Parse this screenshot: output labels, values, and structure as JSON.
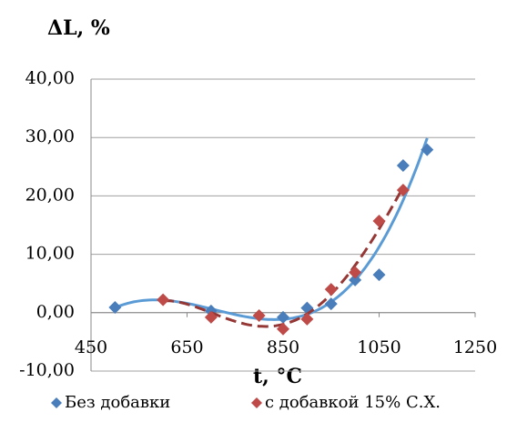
{
  "chart_data": {
    "type": "scatter",
    "title": "ΔL, %",
    "x_label": "t, °C",
    "xlim": [
      450,
      1250
    ],
    "xticks": [
      450,
      650,
      850,
      1050,
      1250
    ],
    "ylim": [
      -10,
      40
    ],
    "yticks": [
      {
        "value": -10,
        "label": "-10,00"
      },
      {
        "value": 0,
        "label": "0,00"
      },
      {
        "value": 10,
        "label": "10,00"
      },
      {
        "value": 20,
        "label": "20,00"
      },
      {
        "value": 30,
        "label": "30,00"
      },
      {
        "value": 40,
        "label": "40,00"
      }
    ],
    "grid": true,
    "legend": "bottom",
    "series": [
      {
        "name": "Без добавки",
        "color": "#4a7ebb",
        "trendline": true,
        "x": [
          500,
          700,
          850,
          900,
          950,
          1000,
          1050,
          1100,
          1150
        ],
        "values": [
          0.9,
          0.3,
          -0.8,
          0.8,
          1.5,
          5.6,
          6.5,
          25.2,
          27.9
        ]
      },
      {
        "name": "с добавкой 15% С.Х.",
        "color": "#be4b48",
        "trendline": true,
        "x": [
          600,
          700,
          800,
          850,
          900,
          950,
          1000,
          1050,
          1100
        ],
        "values": [
          2.2,
          -0.8,
          -0.5,
          -2.8,
          -1.1,
          4.0,
          6.9,
          15.7,
          21.0
        ]
      }
    ]
  }
}
